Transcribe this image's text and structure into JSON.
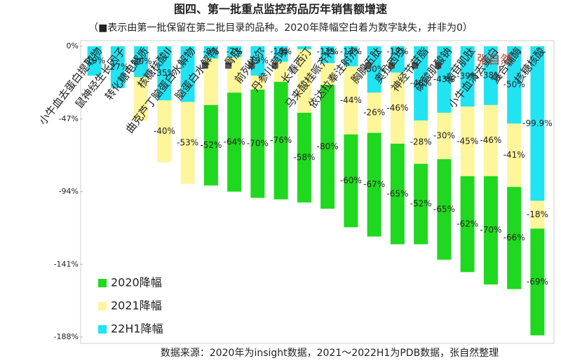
{
  "chart_data": {
    "type": "stacked-bar",
    "title": "图四、第一批重点监控药品历年销售额增速",
    "subtitle": "（■表示由第一批保留在第二批目录的品种。2020年降幅空白着为数字缺失，并非为0）",
    "source": "数据来源：2020年为insight数据，2021～2022H1为PDB数据，张自然整理",
    "watermark": "张自然",
    "categories": [
      "小牛血去蛋白提取物",
      "鼠神经生长因子",
      "转化糖电解质",
      "核糖核酸II",
      "曲克芦丁脑蛋白水解物",
      "脑蛋白水解物",
      "骨肽",
      "前列地尔",
      "丹参川芎嗪",
      "长春西汀",
      "马来酸桂哌齐特",
      "依达拉奉注射剂",
      "胸腺五肽",
      "奥拉西坦",
      "神经节苷脂",
      "磷酸肌酸钠",
      "脑苷肌肽",
      "小牛血清去蛋白",
      "复合辅酶",
      "核糖核酸"
    ],
    "retained": [
      false,
      false,
      false,
      false,
      false,
      true,
      true,
      true,
      true,
      false,
      false,
      false,
      true,
      true,
      true,
      true,
      false,
      false,
      false,
      false
    ],
    "series": [
      {
        "name": "22H1降幅",
        "color": "#22e3f2",
        "values": [
          -19,
          -27,
          -20,
          -35,
          -36,
          -8,
          -7,
          -19,
          -10,
          -2,
          -11,
          -13,
          -30,
          -17,
          -48,
          -43,
          -39,
          -38,
          -50,
          -99.9
        ],
        "value_labels": [
          "-19%",
          "-27%",
          "-20%",
          "-35%",
          null,
          "-8%",
          "-7%",
          "-19%",
          "-10%",
          null,
          "-11%",
          "-13%",
          "-30%",
          "-17%",
          "-48%",
          "-43%",
          "-39%",
          "-38%",
          "-50%",
          "-99.9%"
        ]
      },
      {
        "name": "2021降幅",
        "color": "#fff59a",
        "values": [
          null,
          null,
          -28,
          -40,
          -53,
          -30,
          -23,
          -9,
          -13,
          -41,
          -14,
          -44,
          -26,
          -46,
          -28,
          -30,
          -45,
          -46,
          -41,
          -18
        ],
        "value_labels": [
          null,
          null,
          null,
          "-40%",
          "-53%",
          null,
          null,
          null,
          null,
          null,
          null,
          "-44%",
          "-26%",
          "-46%",
          "-28%",
          "-30%",
          "-45%",
          "-46%",
          "-41%",
          "-18%"
        ]
      },
      {
        "name": "2020降幅",
        "color": "#1fd81f",
        "values": [
          null,
          null,
          null,
          null,
          null,
          -52,
          -64,
          -70,
          -76,
          -58,
          -80,
          -60,
          -67,
          -65,
          -52,
          -65,
          -62,
          -70,
          -66,
          -69
        ],
        "value_labels": [
          null,
          null,
          null,
          null,
          null,
          "-52%",
          "-64%",
          "-70%",
          "-76%",
          "-58%",
          "-80%",
          "-60%",
          "-67%",
          "-65%",
          "-52%",
          "-65%",
          "-62%",
          "-70%",
          "-66%",
          "-69%"
        ]
      }
    ],
    "ylim": [
      0,
      -188
    ],
    "yticks": [
      {
        "value": 0,
        "label": "0%"
      },
      {
        "value": -47,
        "label": "-47%"
      },
      {
        "value": -94,
        "label": "-94%"
      },
      {
        "value": -141,
        "label": "-141%"
      },
      {
        "value": -188,
        "label": "-188%"
      }
    ]
  }
}
